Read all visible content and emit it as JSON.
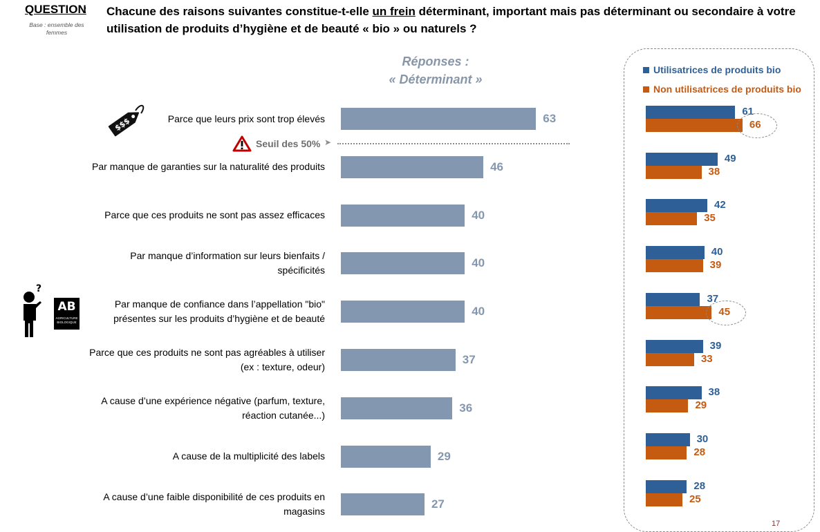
{
  "header": {
    "question_label": "QUESTION",
    "colon": ":",
    "base_text": "Base : ensemble des femmes",
    "question_part1": "Chacune des raisons suivantes constitue-t-elle ",
    "question_underlined": "un frein",
    "question_part2": " déterminant, important mais pas déterminant ou secondaire à votre utilisation de produits d’hygiène et de beauté « bio » ou naturels ?"
  },
  "responses_title_line1": "Réponses :",
  "responses_title_line2": "« Déterminant »",
  "threshold_label": "Seuil des 50%",
  "legend": {
    "users": "Utilisatrices de produits bio",
    "non_users": "Non utilisatrices de produits bio"
  },
  "colors": {
    "main_bar": "#8497b0",
    "users": "#2e5f96",
    "non_users": "#c55a11"
  },
  "icons": [
    "price-tag-icon",
    "warning-icon",
    "confused-person-icon",
    "ab-organic-logo"
  ],
  "ab_logo_text": "AB",
  "ab_logo_sub": "AGRICULTURE BIOLOGIQUE",
  "page_number": "17",
  "chart_data": [
    {
      "type": "bar",
      "orientation": "horizontal",
      "title": "Réponses : « Déterminant »",
      "categories": [
        "Parce que leurs prix sont trop élevés",
        "Par manque de garanties sur la naturalité des produits",
        "Parce que ces produits ne sont pas assez efficaces",
        "Par manque d’information sur leurs bienfaits / spécificités",
        "Par manque de confiance dans l’appellation \"bio\" présentes sur les produits d’hygiène et de beauté",
        "Parce que ces produits ne sont pas agréables à utiliser (ex : texture, odeur)",
        "A cause d’une expérience négative (parfum, texture, réaction cutanée...)",
        "A cause de la multiplicité des labels",
        "A cause d’une faible disponibilité de ces produits en magasins"
      ],
      "category_lines": [
        [
          "Parce que leurs prix sont trop élevés"
        ],
        [
          "Par manque de garanties sur la naturalité des produits"
        ],
        [
          "Parce que ces produits ne sont pas assez efficaces"
        ],
        [
          "Par manque d’information sur leurs bienfaits /",
          "spécificités"
        ],
        [
          "Par manque de confiance dans l’appellation \"bio\"",
          "présentes sur les produits d’hygiène et de beauté"
        ],
        [
          "Parce que ces produits ne sont pas agréables à utiliser",
          "(ex : texture, odeur)"
        ],
        [
          "A cause d’une expérience négative (parfum, texture,",
          "réaction cutanée...)"
        ],
        [
          "A cause de la multiplicité des labels"
        ],
        [
          "A cause d’une faible disponibilité de ces produits en",
          "magasins"
        ]
      ],
      "values": [
        63,
        46,
        40,
        40,
        40,
        37,
        36,
        29,
        27
      ],
      "reference_line": {
        "value": 50,
        "label": "Seuil des 50%"
      }
    },
    {
      "type": "bar",
      "orientation": "horizontal",
      "series": [
        {
          "name": "Utilisatrices de produits bio",
          "values": [
            61,
            49,
            42,
            40,
            37,
            39,
            38,
            30,
            28
          ]
        },
        {
          "name": "Non utilisatrices de produits bio",
          "values": [
            66,
            38,
            35,
            39,
            45,
            33,
            29,
            28,
            25
          ]
        }
      ],
      "highlighted": [
        0,
        4
      ]
    }
  ]
}
